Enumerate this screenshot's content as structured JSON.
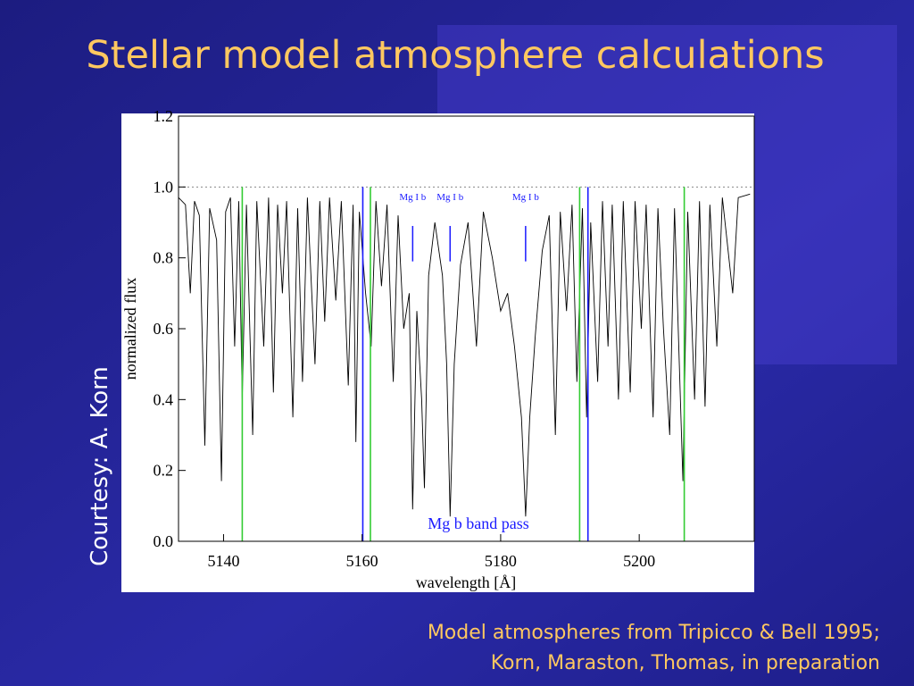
{
  "title": "Stellar model atmosphere calculations",
  "courtesy": "Courtesy: A. Korn",
  "caption": [
    "Model atmospheres from Tripicco & Bell 1995;",
    "Korn, Maraston, Thomas, in preparation"
  ],
  "chart_data": {
    "type": "line",
    "xlabel": "wavelength [Å]",
    "ylabel": "normalized flux",
    "annotation": "Mg b band pass",
    "color": "#000000",
    "xlim": [
      5133.5,
      5216.6
    ],
    "ylim": [
      0,
      1.2
    ],
    "xticks": [
      5140,
      5160,
      5180,
      5200
    ],
    "yticks": [
      {
        "value": 0,
        "label": "0.0"
      },
      0.2,
      0.4,
      0.6,
      0.8,
      {
        "value": 1,
        "label": "1.0"
      },
      1.2
    ],
    "reference_line": 1.0,
    "vlines": [
      {
        "x": 5142.7,
        "color": "#33cc33"
      },
      {
        "x": 5160.1,
        "color": "#1a1aff"
      },
      {
        "x": 5161.2,
        "color": "#33cc33"
      },
      {
        "x": 5191.4,
        "color": "#33cc33"
      },
      {
        "x": 5192.6,
        "color": "#1a1aff"
      },
      {
        "x": 5206.5,
        "color": "#33cc33"
      }
    ],
    "markers": [
      {
        "x": 5167.3,
        "label": "Mg I b"
      },
      {
        "x": 5172.7,
        "label": "Mg I b"
      },
      {
        "x": 5183.6,
        "label": "Mg I b"
      }
    ],
    "marker_color": "#1a1aff",
    "x": [
      5133.5,
      5134.5,
      5135.2,
      5135.8,
      5136.5,
      5137.3,
      5138.0,
      5139.0,
      5139.7,
      5140.3,
      5141.0,
      5141.6,
      5142.2,
      5142.7,
      5143.3,
      5144.2,
      5144.8,
      5145.8,
      5146.5,
      5147.2,
      5147.8,
      5148.5,
      5149.1,
      5150.0,
      5150.7,
      5151.4,
      5152.1,
      5153.2,
      5153.9,
      5154.6,
      5155.3,
      5156.2,
      5157.0,
      5158.0,
      5158.7,
      5159.1,
      5159.6,
      5160.5,
      5161.3,
      5162.0,
      5162.8,
      5163.6,
      5164.5,
      5165.2,
      5166.0,
      5166.8,
      5167.3,
      5167.9,
      5168.6,
      5169.0,
      5169.6,
      5170.5,
      5171.6,
      5172.2,
      5172.7,
      5173.3,
      5174.2,
      5175.3,
      5176.5,
      5177.5,
      5178.8,
      5180.0,
      5181.0,
      5182.0,
      5183.0,
      5183.6,
      5184.2,
      5185.0,
      5186.0,
      5187.0,
      5187.9,
      5188.6,
      5189.5,
      5190.3,
      5191.0,
      5191.8,
      5192.4,
      5193.0,
      5194.0,
      5194.7,
      5195.5,
      5196.1,
      5197.0,
      5197.7,
      5198.7,
      5199.4,
      5200.3,
      5201.0,
      5202.0,
      5202.7,
      5203.5,
      5204.4,
      5205.1,
      5206.3,
      5207.0,
      5208.0,
      5208.7,
      5209.5,
      5210.2,
      5211.2,
      5212.0,
      5213.5,
      5214.3,
      5216.0
    ],
    "values": [
      0.97,
      0.95,
      0.7,
      0.96,
      0.92,
      0.27,
      0.94,
      0.85,
      0.17,
      0.93,
      0.97,
      0.55,
      0.96,
      0.4,
      0.95,
      0.3,
      0.96,
      0.55,
      0.97,
      0.42,
      0.95,
      0.7,
      0.96,
      0.35,
      0.94,
      0.45,
      0.97,
      0.5,
      0.96,
      0.62,
      0.97,
      0.68,
      0.96,
      0.44,
      0.95,
      0.28,
      0.93,
      0.7,
      0.55,
      0.96,
      0.72,
      0.95,
      0.45,
      0.92,
      0.6,
      0.7,
      0.09,
      0.65,
      0.4,
      0.15,
      0.75,
      0.9,
      0.75,
      0.5,
      0.07,
      0.5,
      0.78,
      0.9,
      0.55,
      0.93,
      0.8,
      0.65,
      0.7,
      0.55,
      0.35,
      0.07,
      0.35,
      0.58,
      0.82,
      0.92,
      0.3,
      0.93,
      0.65,
      0.95,
      0.45,
      0.94,
      0.35,
      0.9,
      0.45,
      0.96,
      0.55,
      0.95,
      0.4,
      0.96,
      0.42,
      0.96,
      0.6,
      0.95,
      0.35,
      0.94,
      0.6,
      0.3,
      0.94,
      0.17,
      0.93,
      0.4,
      0.96,
      0.38,
      0.95,
      0.55,
      0.97,
      0.7,
      0.97,
      0.98
    ]
  }
}
